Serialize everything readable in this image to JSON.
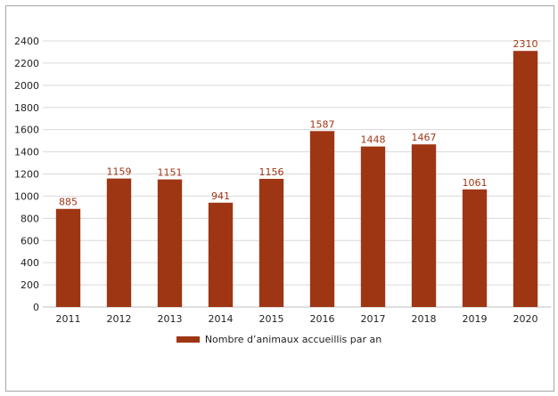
{
  "chart_data": {
    "type": "bar",
    "title": "",
    "xlabel": "",
    "ylabel": "",
    "categories": [
      "2011",
      "2012",
      "2013",
      "2014",
      "2015",
      "2016",
      "2017",
      "2018",
      "2019",
      "2020"
    ],
    "series": [
      {
        "name": "Nombre d’animaux accueillis par an",
        "values": [
          885,
          1159,
          1151,
          941,
          1156,
          1587,
          1448,
          1467,
          1061,
          2310
        ],
        "color": "#9e3614"
      }
    ],
    "ylim": [
      0,
      2400
    ],
    "yticks": [
      0,
      200,
      400,
      600,
      800,
      1000,
      1200,
      1400,
      1600,
      1800,
      2000,
      2200,
      2400
    ],
    "grid": true,
    "legend_position": "bottom",
    "data_label_color": "#9e3614"
  }
}
